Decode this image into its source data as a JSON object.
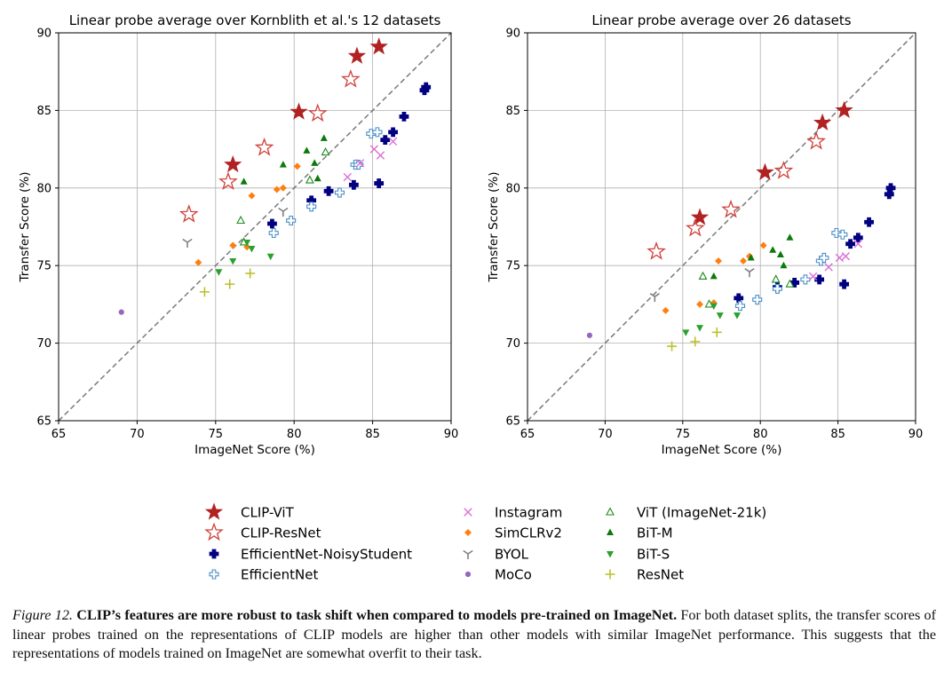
{
  "chart_data": [
    {
      "type": "scatter",
      "title": "Linear probe average over Kornblith et al.'s 12 datasets",
      "xlabel": "ImageNet Score (%)",
      "ylabel": "Transfer Score (%)",
      "xlim": [
        65,
        90
      ],
      "ylim": [
        65,
        90
      ],
      "xticks": [
        "65",
        "70",
        "75",
        "80",
        "85",
        "90"
      ],
      "yticks": [
        "65",
        "70",
        "75",
        "80",
        "85",
        "90"
      ],
      "grid": true,
      "diagonal": true,
      "series": [
        {
          "name": "CLIP-ViT",
          "points": [
            [
              76.1,
              81.5
            ],
            [
              80.3,
              84.9
            ],
            [
              84.0,
              88.5
            ],
            [
              85.4,
              89.1
            ]
          ]
        },
        {
          "name": "CLIP-ResNet",
          "points": [
            [
              73.3,
              78.3
            ],
            [
              75.8,
              80.4
            ],
            [
              78.1,
              82.6
            ],
            [
              81.5,
              84.8
            ],
            [
              83.6,
              87.0
            ]
          ]
        },
        {
          "name": "EfficientNet-NoisyStudent",
          "points": [
            [
              78.6,
              77.7
            ],
            [
              81.1,
              79.2
            ],
            [
              82.2,
              79.8
            ],
            [
              83.8,
              80.2
            ],
            [
              85.4,
              80.3
            ],
            [
              85.8,
              83.1
            ],
            [
              86.3,
              83.6
            ],
            [
              87.0,
              84.6
            ],
            [
              88.3,
              86.3
            ],
            [
              88.4,
              86.5
            ]
          ]
        },
        {
          "name": "EfficientNet",
          "points": [
            [
              78.7,
              77.1
            ],
            [
              79.8,
              77.9
            ],
            [
              81.1,
              78.8
            ],
            [
              82.9,
              79.7
            ],
            [
              83.9,
              81.5
            ],
            [
              84.1,
              81.5
            ],
            [
              84.9,
              83.5
            ],
            [
              85.3,
              83.6
            ]
          ]
        },
        {
          "name": "Instagram",
          "points": [
            [
              83.4,
              80.7
            ],
            [
              84.2,
              81.6
            ],
            [
              85.1,
              82.5
            ],
            [
              85.5,
              82.1
            ],
            [
              86.3,
              83.0
            ]
          ]
        },
        {
          "name": "SimCLRv2",
          "points": [
            [
              73.9,
              75.2
            ],
            [
              76.1,
              76.3
            ],
            [
              77.0,
              76.2
            ],
            [
              77.3,
              79.5
            ],
            [
              78.9,
              79.9
            ],
            [
              79.3,
              80.0
            ],
            [
              80.2,
              81.4
            ]
          ]
        },
        {
          "name": "BYOL",
          "points": [
            [
              73.2,
              76.5
            ],
            [
              79.3,
              78.5
            ]
          ]
        },
        {
          "name": "MoCo",
          "points": [
            [
              69.0,
              72.0
            ]
          ]
        },
        {
          "name": "ViT (ImageNet-21k)",
          "points": [
            [
              76.6,
              77.9
            ],
            [
              76.8,
              76.5
            ],
            [
              81.0,
              80.5
            ],
            [
              82.0,
              82.3
            ]
          ]
        },
        {
          "name": "BiT-M",
          "points": [
            [
              76.8,
              80.4
            ],
            [
              79.3,
              81.5
            ],
            [
              80.8,
              82.4
            ],
            [
              81.3,
              81.6
            ],
            [
              81.5,
              80.6
            ],
            [
              81.9,
              83.2
            ]
          ]
        },
        {
          "name": "BiT-S",
          "points": [
            [
              75.2,
              74.6
            ],
            [
              76.1,
              75.3
            ],
            [
              77.0,
              76.5
            ],
            [
              77.3,
              76.1
            ],
            [
              78.5,
              75.6
            ]
          ]
        },
        {
          "name": "ResNet",
          "points": [
            [
              74.3,
              73.3
            ],
            [
              75.9,
              73.8
            ],
            [
              77.2,
              74.5
            ]
          ]
        }
      ]
    },
    {
      "type": "scatter",
      "title": "Linear probe average over 26 datasets",
      "xlabel": "ImageNet Score (%)",
      "ylabel": "Transfer Score (%)",
      "xlim": [
        65,
        90
      ],
      "ylim": [
        65,
        90
      ],
      "xticks": [
        "65",
        "70",
        "75",
        "80",
        "85",
        "90"
      ],
      "yticks": [
        "65",
        "70",
        "75",
        "80",
        "85",
        "90"
      ],
      "grid": true,
      "diagonal": true,
      "series": [
        {
          "name": "CLIP-ViT",
          "points": [
            [
              76.1,
              78.1
            ],
            [
              80.3,
              81.0
            ],
            [
              84.0,
              84.2
            ],
            [
              85.4,
              85.0
            ]
          ]
        },
        {
          "name": "CLIP-ResNet",
          "points": [
            [
              73.3,
              75.9
            ],
            [
              75.8,
              77.4
            ],
            [
              78.1,
              78.6
            ],
            [
              81.5,
              81.1
            ],
            [
              83.6,
              83.0
            ]
          ]
        },
        {
          "name": "EfficientNet-NoisyStudent",
          "points": [
            [
              78.6,
              72.9
            ],
            [
              81.1,
              73.6
            ],
            [
              82.2,
              73.9
            ],
            [
              83.8,
              74.1
            ],
            [
              85.4,
              73.8
            ],
            [
              85.8,
              76.4
            ],
            [
              86.3,
              76.8
            ],
            [
              87.0,
              77.8
            ],
            [
              88.3,
              79.6
            ],
            [
              88.4,
              80.0
            ]
          ]
        },
        {
          "name": "EfficientNet",
          "points": [
            [
              78.7,
              72.4
            ],
            [
              79.8,
              72.8
            ],
            [
              81.1,
              73.5
            ],
            [
              82.9,
              74.1
            ],
            [
              83.9,
              75.3
            ],
            [
              84.1,
              75.5
            ],
            [
              84.9,
              77.1
            ],
            [
              85.3,
              77.0
            ]
          ]
        },
        {
          "name": "Instagram",
          "points": [
            [
              83.4,
              74.3
            ],
            [
              84.4,
              74.9
            ],
            [
              85.1,
              75.5
            ],
            [
              85.5,
              75.6
            ],
            [
              86.3,
              76.4
            ]
          ]
        },
        {
          "name": "SimCLRv2",
          "points": [
            [
              73.9,
              72.1
            ],
            [
              76.1,
              72.5
            ],
            [
              77.0,
              72.6
            ],
            [
              77.3,
              75.3
            ],
            [
              78.9,
              75.3
            ],
            [
              79.3,
              75.6
            ],
            [
              80.2,
              76.3
            ]
          ]
        },
        {
          "name": "BYOL",
          "points": [
            [
              73.2,
              73.0
            ],
            [
              79.3,
              74.6
            ]
          ]
        },
        {
          "name": "MoCo",
          "points": [
            [
              69.0,
              70.5
            ]
          ]
        },
        {
          "name": "ViT (ImageNet-21k)",
          "points": [
            [
              76.3,
              74.3
            ],
            [
              76.7,
              72.5
            ],
            [
              81.0,
              74.1
            ],
            [
              81.9,
              73.8
            ]
          ]
        },
        {
          "name": "BiT-M",
          "points": [
            [
              77.0,
              74.3
            ],
            [
              80.8,
              76.0
            ],
            [
              81.3,
              75.7
            ],
            [
              81.5,
              75.0
            ],
            [
              81.9,
              76.8
            ],
            [
              79.4,
              75.5
            ]
          ]
        },
        {
          "name": "BiT-S",
          "points": [
            [
              75.2,
              70.7
            ],
            [
              76.1,
              71.0
            ],
            [
              77.0,
              72.4
            ],
            [
              77.4,
              71.8
            ],
            [
              78.5,
              71.8
            ]
          ]
        },
        {
          "name": "ResNet",
          "points": [
            [
              74.3,
              69.8
            ],
            [
              75.8,
              70.1
            ],
            [
              77.2,
              70.7
            ]
          ]
        }
      ]
    }
  ],
  "legend": {
    "columns": [
      [
        "CLIP-ViT",
        "CLIP-ResNet",
        "EfficientNet-NoisyStudent",
        "EfficientNet"
      ],
      [
        "Instagram",
        "SimCLRv2",
        "BYOL",
        "MoCo"
      ],
      [
        "ViT (ImageNet-21k)",
        "BiT-M",
        "BiT-S",
        "ResNet"
      ]
    ]
  },
  "styles": {
    "CLIP-ViT": {
      "marker": "star-filled",
      "color": "#b22222"
    },
    "CLIP-ResNet": {
      "marker": "star-open",
      "color": "#d0403a"
    },
    "EfficientNet-NoisyStudent": {
      "marker": "plus-filled",
      "color": "#000080"
    },
    "EfficientNet": {
      "marker": "plus-open",
      "color": "#4a8fc8"
    },
    "Instagram": {
      "marker": "x",
      "color": "#da70d6"
    },
    "SimCLRv2": {
      "marker": "diamond",
      "color": "#ff7f0e"
    },
    "BYOL": {
      "marker": "tri-down",
      "color": "#808080"
    },
    "MoCo": {
      "marker": "circle",
      "color": "#9467bd"
    },
    "ViT (ImageNet-21k)": {
      "marker": "triangle-open",
      "color": "#1f8a1f"
    },
    "BiT-M": {
      "marker": "triangle-up",
      "color": "#0a7a0a"
    },
    "BiT-S": {
      "marker": "triangle-down",
      "color": "#2ca02c"
    },
    "ResNet": {
      "marker": "plus",
      "color": "#bcbd22"
    }
  },
  "caption": {
    "label": "Figure 12.",
    "title": "CLIP’s features are more robust to task shift when compared to models pre-trained on ImageNet.",
    "body": "For both dataset splits, the transfer scores of linear probes trained on the representations of CLIP models are higher than other models with similar ImageNet performance. This suggests that the representations of models trained on ImageNet are somewhat overfit to their task."
  }
}
